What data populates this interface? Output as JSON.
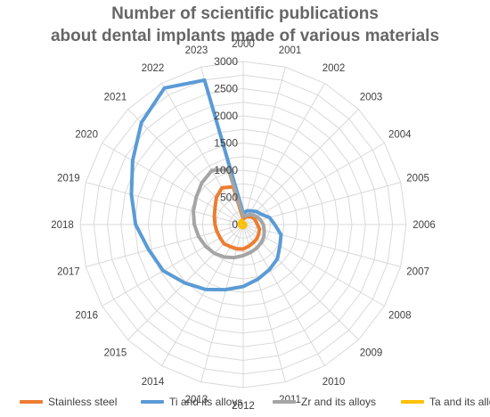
{
  "chart_data": {
    "type": "radar",
    "title_line1": "Number of scientific publications",
    "title_line2": "about dental implants made of various materials",
    "categories": [
      "2000",
      "2001",
      "2002",
      "2003",
      "2004",
      "2005",
      "2006",
      "2007",
      "2008",
      "2009",
      "2010",
      "2011",
      "2012",
      "2013",
      "2014",
      "2015",
      "2016",
      "2017",
      "2018",
      "2019",
      "2020",
      "2021",
      "2022",
      "2023"
    ],
    "radial_ticks": [
      "0",
      "500",
      "1000",
      "1500",
      "2000",
      "2500",
      "3000"
    ],
    "rlim": [
      0,
      3000
    ],
    "grid": true,
    "legend_position": "bottom",
    "series": [
      {
        "name": "Stainless steel",
        "color": "#ED7D31",
        "values": [
          100,
          140,
          170,
          200,
          230,
          240,
          260,
          310,
          330,
          360,
          380,
          410,
          450,
          460,
          470,
          500,
          490,
          500,
          520,
          550,
          600,
          700,
          780,
          720
        ]
      },
      {
        "name": "Ti and its alloys",
        "color": "#5B9BD5",
        "values": [
          210,
          260,
          290,
          340,
          380,
          500,
          580,
          720,
          780,
          890,
          960,
          1040,
          1140,
          1240,
          1380,
          1520,
          1700,
          1800,
          1980,
          2130,
          2350,
          2650,
          2900,
          2750
        ]
      },
      {
        "name": "Zr and its alloys",
        "color": "#A5A5A5",
        "values": [
          150,
          170,
          210,
          250,
          290,
          330,
          370,
          400,
          440,
          470,
          500,
          530,
          570,
          630,
          690,
          750,
          800,
          850,
          900,
          950,
          1000,
          1080,
          1150,
          1050
        ]
      },
      {
        "name": "Ta and its alloys",
        "color": "#FFC000",
        "values": [
          20,
          25,
          30,
          32,
          35,
          38,
          40,
          42,
          45,
          48,
          50,
          52,
          55,
          58,
          60,
          62,
          65,
          68,
          70,
          72,
          75,
          78,
          80,
          78
        ]
      }
    ]
  }
}
